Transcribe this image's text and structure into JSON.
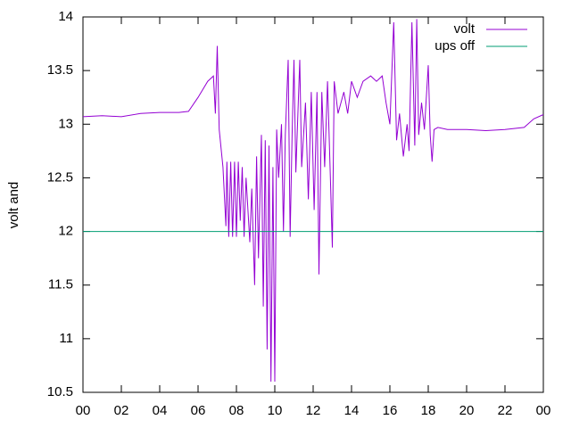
{
  "chart_data": {
    "type": "line",
    "y_label": "volt and",
    "xlim": [
      0,
      24
    ],
    "xticks": [
      {
        "value": 0,
        "label": "00"
      },
      {
        "value": 2,
        "label": "02"
      },
      {
        "value": 4,
        "label": "04"
      },
      {
        "value": 6,
        "label": "06"
      },
      {
        "value": 8,
        "label": "08"
      },
      {
        "value": 10,
        "label": "10"
      },
      12,
      14,
      16,
      18,
      20,
      22,
      {
        "value": 24,
        "label": "00"
      }
    ],
    "ylim": [
      10.5,
      14
    ],
    "yticks": [
      10.5,
      11,
      11.5,
      12,
      12.5,
      13,
      13.5,
      14
    ],
    "legend": "top-right",
    "series": [
      {
        "name": "volt",
        "color": "#9400d3",
        "x": [
          0,
          1,
          2,
          3,
          4,
          5,
          5.5,
          6,
          6.5,
          6.8,
          6.9,
          7.0,
          7.1,
          7.3,
          7.45,
          7.5,
          7.6,
          7.7,
          7.8,
          7.9,
          8.0,
          8.1,
          8.2,
          8.3,
          8.4,
          8.5,
          8.7,
          8.8,
          8.95,
          9.05,
          9.15,
          9.3,
          9.4,
          9.5,
          9.6,
          9.7,
          9.8,
          9.9,
          10.0,
          10.1,
          10.2,
          10.35,
          10.45,
          10.55,
          10.7,
          10.8,
          10.9,
          11.0,
          11.1,
          11.3,
          11.4,
          11.6,
          11.75,
          11.9,
          12.05,
          12.2,
          12.3,
          12.45,
          12.6,
          12.75,
          12.9,
          13.0,
          13.1,
          13.3,
          13.6,
          13.8,
          14.0,
          14.3,
          14.6,
          15.0,
          15.3,
          15.6,
          15.8,
          16.0,
          16.2,
          16.35,
          16.5,
          16.7,
          16.9,
          17.0,
          17.15,
          17.3,
          17.4,
          17.5,
          17.65,
          17.8,
          18.0,
          18.1,
          18.2,
          18.3,
          18.5,
          19,
          20,
          21,
          22,
          23,
          23.5,
          24
        ],
        "values": [
          13.07,
          13.08,
          13.07,
          13.1,
          13.11,
          13.11,
          13.12,
          13.25,
          13.4,
          13.45,
          13.1,
          13.73,
          12.95,
          12.6,
          12.05,
          12.65,
          11.95,
          12.65,
          11.95,
          12.65,
          11.95,
          12.65,
          12.1,
          12.6,
          11.95,
          12.5,
          11.9,
          12.4,
          11.5,
          12.7,
          11.75,
          12.9,
          11.3,
          12.85,
          10.9,
          12.8,
          10.6,
          12.6,
          10.6,
          12.95,
          12.5,
          13.0,
          12.0,
          12.9,
          13.6,
          11.95,
          12.9,
          13.6,
          12.55,
          13.6,
          12.6,
          13.2,
          12.3,
          13.3,
          12.2,
          13.3,
          11.6,
          13.3,
          12.6,
          13.4,
          12.5,
          11.85,
          13.4,
          13.1,
          13.3,
          13.1,
          13.4,
          13.25,
          13.4,
          13.45,
          13.4,
          13.45,
          13.2,
          13.0,
          13.95,
          12.85,
          13.1,
          12.7,
          13.0,
          12.75,
          13.95,
          12.8,
          13.98,
          12.9,
          13.2,
          12.95,
          13.55,
          12.9,
          12.65,
          12.95,
          12.97,
          12.95,
          12.95,
          12.94,
          12.95,
          12.97,
          13.05,
          13.09
        ]
      },
      {
        "name": "ups off",
        "color": "#009e73",
        "x": [
          0,
          24
        ],
        "values": [
          12,
          12
        ]
      }
    ]
  }
}
